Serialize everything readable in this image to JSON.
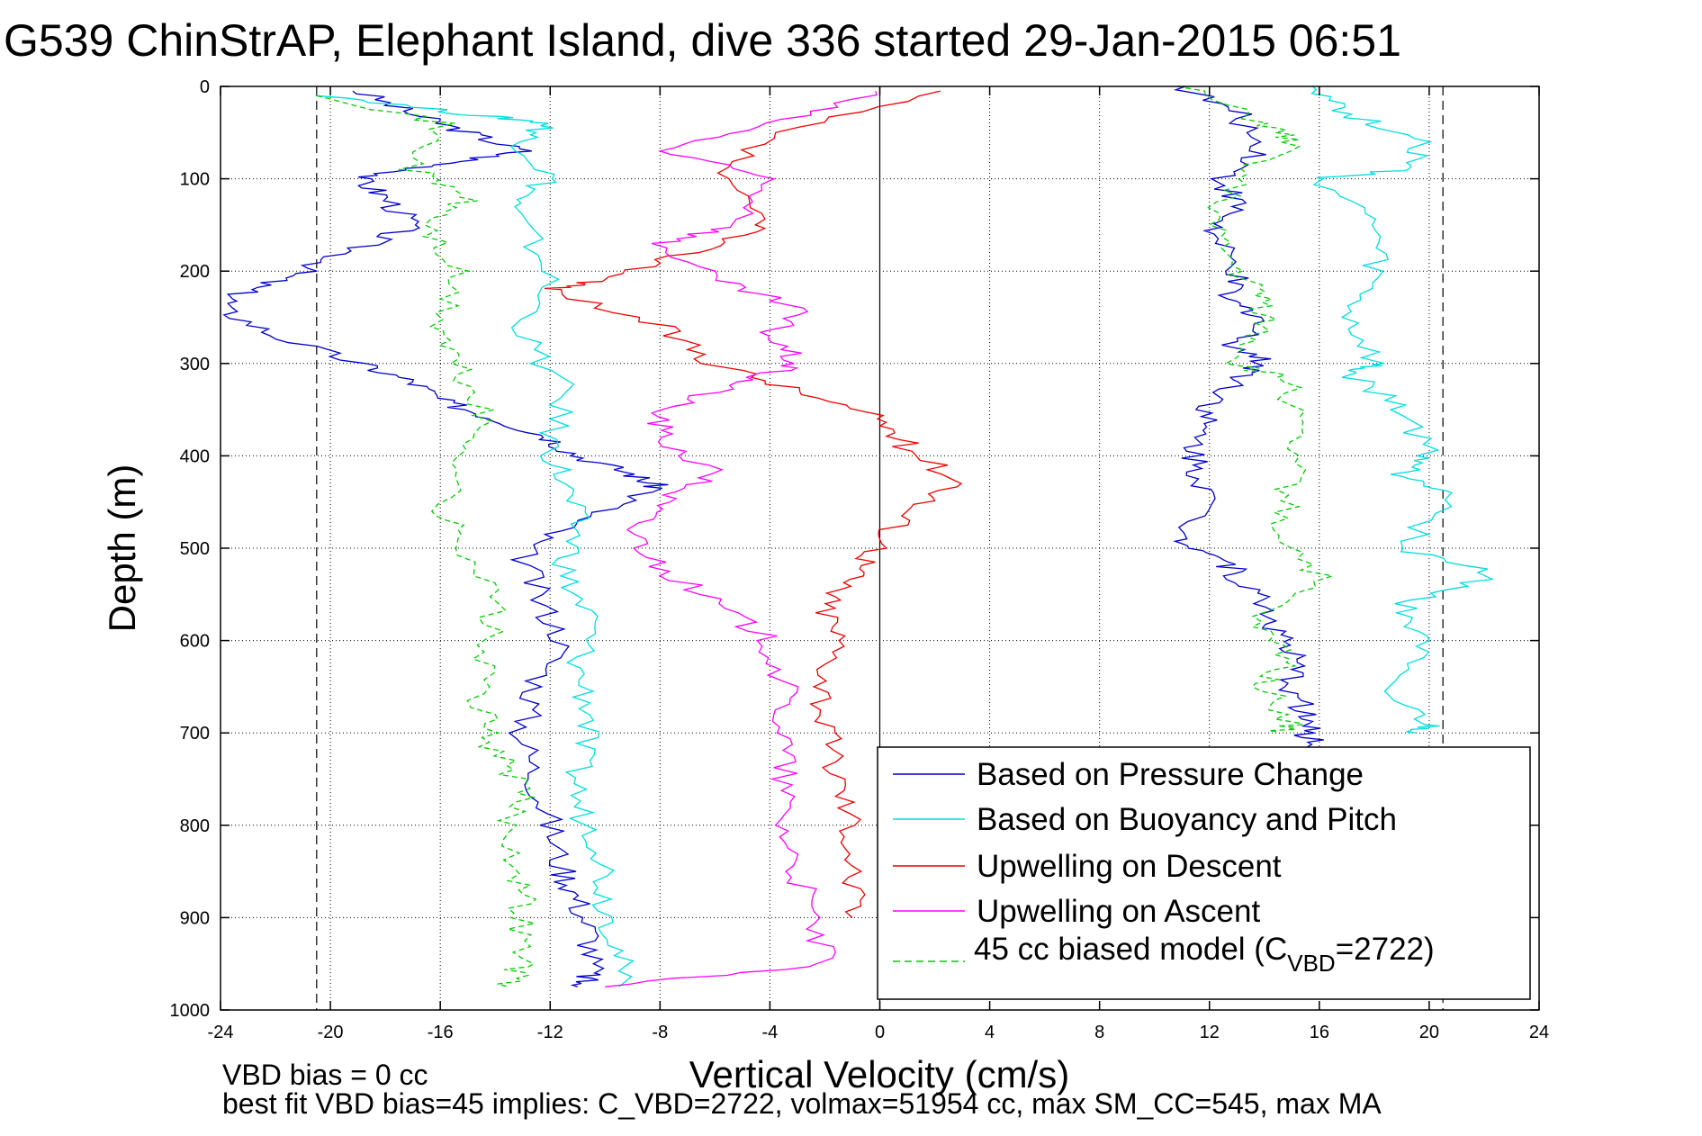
{
  "chart_data": {
    "type": "line",
    "title": "G539 ChinStrAP, Elephant Island, dive 336 started 29-Jan-2015 06:51",
    "xlabel": "Vertical Velocity (cm/s)",
    "ylabel": "Depth (m)",
    "xlim": [
      -24,
      24
    ],
    "ylim": [
      0,
      1000
    ],
    "y_reversed": true,
    "grid": true,
    "xticks": [
      -24,
      -20,
      -16,
      -12,
      -8,
      -4,
      0,
      4,
      8,
      12,
      16,
      20,
      24
    ],
    "yticks": [
      0,
      100,
      200,
      300,
      400,
      500,
      600,
      700,
      800,
      900,
      1000
    ],
    "vlines": [
      -20.5,
      0,
      20.5
    ],
    "legend_position": "bottom-right",
    "notes": [
      "VBD bias = 0 cc",
      "best fit VBD bias=45 implies: C_VBD=2722, volmax=51954 cc, max SM_CC=545, max MA"
    ],
    "series": [
      {
        "name": "Based on Pressure Change",
        "color": "#0000cc",
        "style": "solid",
        "segments": [
          {
            "x": [
              -19,
              -17,
              -15,
              -13,
              -16,
              -19,
              -18,
              -17,
              -19,
              -21,
              -23,
              -24,
              -22,
              -19,
              -17,
              -16,
              -14,
              -12,
              -11,
              -9,
              -8,
              -11,
              -13,
              -12.5,
              -11.5,
              -12.5,
              -13,
              -12.5,
              -12,
              -11.5,
              -11,
              -10.5,
              -10.5,
              -11
            ],
            "y": [
              5,
              30,
              50,
              70,
              85,
              100,
              120,
              150,
              175,
              200,
              220,
              240,
              270,
              300,
              320,
              340,
              360,
              380,
              400,
              420,
              435,
              470,
              500,
              550,
              600,
              650,
              700,
              750,
              800,
              850,
              880,
              920,
              960,
              975
            ]
          },
          {
            "x": [
              11,
              13,
              14,
              12.5,
              13,
              12,
              13,
              12.5,
              14,
              13,
              14,
              13,
              12,
              11.5,
              11.5,
              12,
              11,
              12.5,
              13,
              14,
              14.5,
              15,
              15,
              15.5,
              15.5,
              16
            ],
            "y": [
              0,
              30,
              70,
              100,
              130,
              160,
              200,
              230,
              250,
              280,
              300,
              320,
              350,
              380,
              410,
              440,
              490,
              510,
              530,
              560,
              590,
              620,
              650,
              680,
              700,
              720
            ]
          }
        ]
      },
      {
        "name": "Based on Buoyancy and Pitch",
        "color": "#00dddd",
        "style": "solid",
        "segments": [
          {
            "x": [
              -20,
              -15,
              -12,
              -13,
              -12,
              -13.5,
              -12,
              -13,
              -11.5,
              -12,
              -11.5,
              -11,
              -11.5,
              -10.5,
              -11,
              -10.5,
              -11,
              -11,
              -10,
              -10,
              -9.5,
              -9.5
            ],
            "y": [
              10,
              30,
              40,
              60,
              100,
              130,
              200,
              270,
              330,
              390,
              430,
              480,
              530,
              580,
              630,
              680,
              730,
              780,
              830,
              880,
              930,
              975
            ]
          },
          {
            "x": [
              16,
              17,
              20,
              19,
              16,
              18,
              18,
              17,
              18,
              17,
              19,
              20,
              19,
              21,
              19,
              22.5,
              19,
              20,
              18,
              20,
              19.5
            ],
            "y": [
              0,
              30,
              60,
              90,
              100,
              150,
              200,
              250,
              300,
              310,
              350,
              400,
              420,
              440,
              500,
              530,
              560,
              600,
              650,
              690,
              700
            ]
          }
        ]
      },
      {
        "name": "Upwelling on Descent",
        "color": "#ee0000",
        "style": "solid",
        "segments": [
          {
            "x": [
              2,
              -4,
              -6,
              -4,
              -7,
              -10,
              -12,
              -8,
              -6,
              -3,
              0,
              1,
              3,
              1,
              0,
              -1,
              -2,
              -1.5,
              -2,
              -2,
              -1.5,
              -1,
              -1,
              -1
            ],
            "y": [
              5,
              50,
              100,
              150,
              180,
              210,
              220,
              260,
              300,
              330,
              360,
              390,
              430,
              460,
              500,
              530,
              560,
              600,
              650,
              700,
              750,
              800,
              850,
              900
            ]
          }
        ]
      },
      {
        "name": "Upwelling on Ascent",
        "color": "#ff00ff",
        "style": "solid",
        "segments": [
          {
            "x": [
              0,
              -4,
              -8,
              -4,
              -5,
              -8,
              -6,
              -3,
              -4,
              -3,
              -5,
              -8,
              -8,
              -6,
              -8,
              -9,
              -8,
              -6,
              -4,
              -3.5,
              -3.5,
              -3.5,
              -3.5,
              -3,
              -2.5,
              -2,
              -10
            ],
            "y": [
              5,
              40,
              70,
              100,
              150,
              170,
              210,
              240,
              270,
              300,
              320,
              350,
              380,
              420,
              450,
              480,
              520,
              560,
              600,
              650,
              700,
              750,
              800,
              850,
              900,
              950,
              975
            ]
          }
        ]
      },
      {
        "name": "45 cc biased model (C_VBD=2722)",
        "color": "#00cc00",
        "style": "dashed",
        "segments": [
          {
            "x": [
              -20,
              -16,
              -17,
              -15,
              -16.5,
              -15.5,
              -16,
              -15.5,
              -14.5,
              -15,
              -16,
              -15,
              -14,
              -14.5,
              -14.5,
              -14,
              -13,
              -13.5,
              -13,
              -13,
              -13,
              -13.5
            ],
            "y": [
              10,
              40,
              90,
              120,
              150,
              200,
              260,
              300,
              350,
              400,
              460,
              500,
              560,
              620,
              680,
              720,
              760,
              800,
              860,
              900,
              950,
              975
            ]
          },
          {
            "x": [
              11,
              14,
              15,
              13,
              12,
              13,
              14,
              14,
              13,
              15,
              15,
              15,
              14.5,
              16,
              13.5,
              15,
              14,
              15,
              14.5
            ],
            "y": [
              0,
              40,
              60,
              100,
              150,
              200,
              230,
              260,
              300,
              320,
              370,
              430,
              480,
              530,
              580,
              620,
              650,
              690,
              700
            ]
          }
        ]
      }
    ]
  },
  "legend": {
    "entries": [
      {
        "text": "Based on Pressure Change",
        "color": "#0000cc",
        "dashed": false
      },
      {
        "text": "Based on Buoyancy and Pitch",
        "color": "#00dddd",
        "dashed": false
      },
      {
        "text": "Upwelling on Descent",
        "color": "#ee0000",
        "dashed": false
      },
      {
        "text": "Upwelling on Ascent",
        "color": "#ff00ff",
        "dashed": false
      }
    ],
    "model_prefix": "45 cc biased model (C",
    "model_sub": "VBD",
    "model_suffix": "=2722)",
    "model_color": "#00cc00"
  }
}
